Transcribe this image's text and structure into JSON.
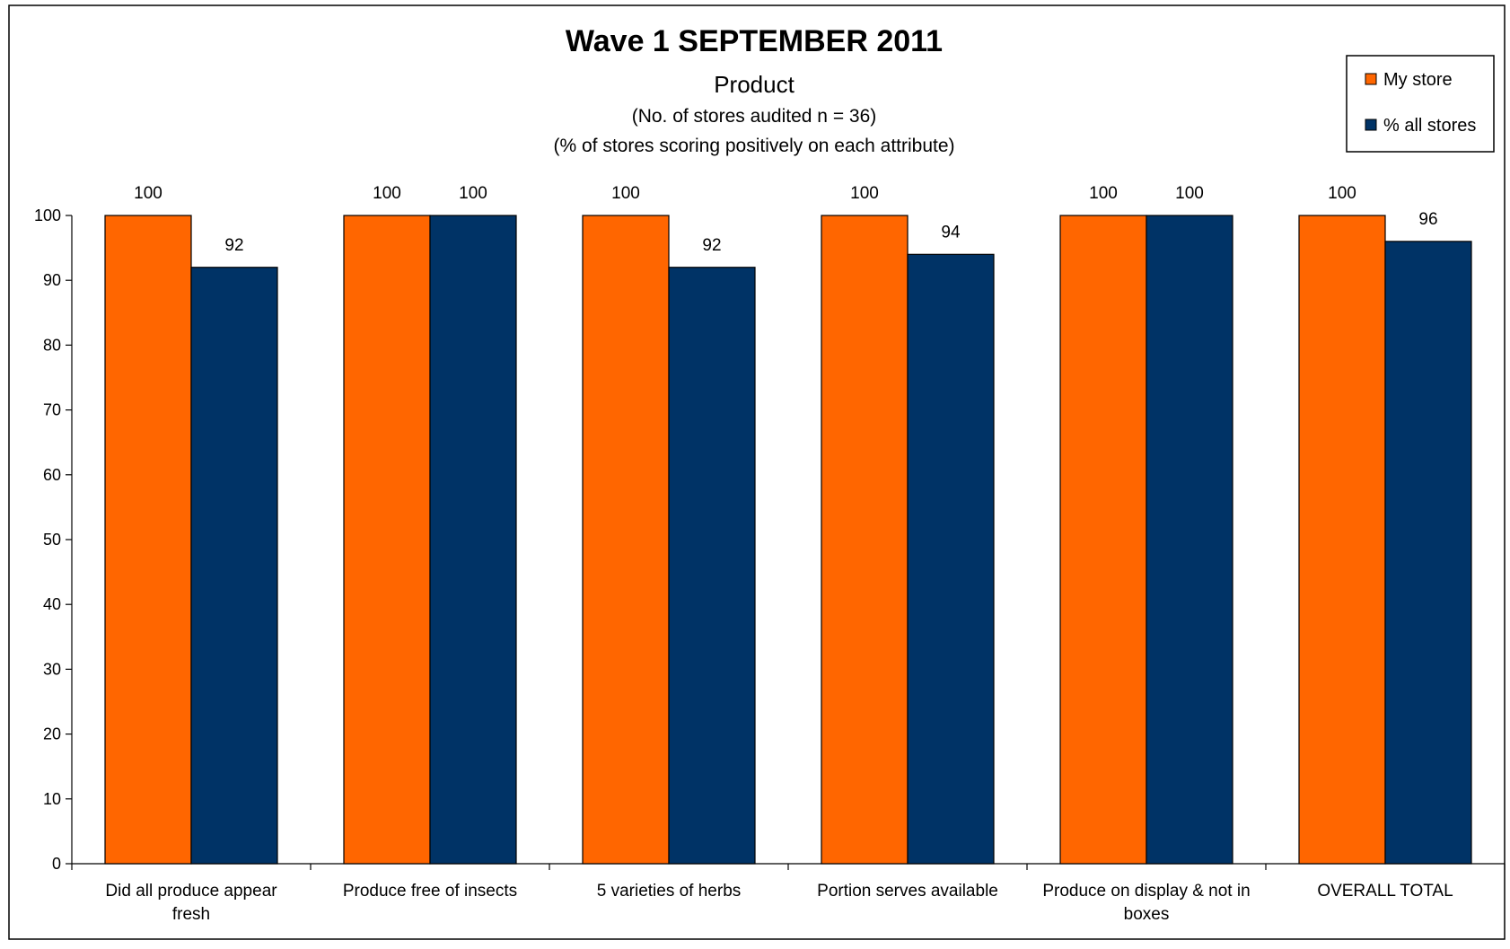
{
  "chart_data": {
    "type": "bar",
    "title": "Wave 1 SEPTEMBER 2011",
    "subtitle": "Product",
    "notes": [
      "(No. of stores audited n = 36)",
      "(% of stores scoring positively on each attribute)"
    ],
    "categories": [
      [
        "Did all produce appear",
        "fresh"
      ],
      [
        "Produce free of insects"
      ],
      [
        "5 varieties of herbs"
      ],
      [
        "Portion serves available"
      ],
      [
        "Produce on display & not in",
        "boxes"
      ],
      [
        "OVERALL TOTAL"
      ]
    ],
    "series": [
      {
        "name": "My store",
        "color": "#ff6600",
        "values": [
          100,
          100,
          100,
          100,
          100,
          100
        ]
      },
      {
        "name": "% all stores",
        "color": "#003366",
        "values": [
          92,
          100,
          92,
          94,
          100,
          96
        ]
      }
    ],
    "ylim": [
      0,
      100
    ],
    "yticks": [
      0,
      10,
      20,
      30,
      40,
      50,
      60,
      70,
      80,
      90,
      100
    ],
    "xlabel": "",
    "ylabel": "",
    "grid": false,
    "legend_position": "top-right",
    "data_labels": true
  }
}
